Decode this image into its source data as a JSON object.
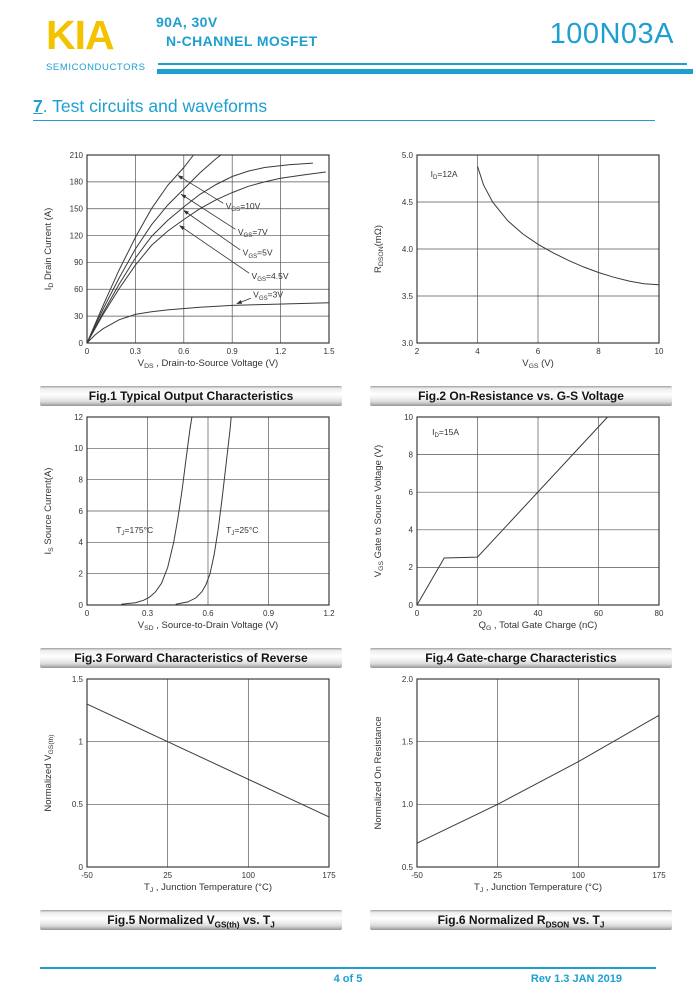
{
  "colors": {
    "brand_cyan": "#1d9fd2",
    "logo_yellow": "#f3c300",
    "chart_line": "#3a3a3a"
  },
  "header": {
    "logo_text": "KIA",
    "logo_subtext": "SEMICONDUCTORS",
    "rating": "90A, 30V",
    "device_type": "N-CHANNEL MOSFET",
    "part_number": "100N03A"
  },
  "section_title": {
    "number": "7",
    "rest": ". Test circuits and waveforms"
  },
  "footer": {
    "page": "4 of 5",
    "revision": "Rev 1.3 JAN 2019"
  },
  "chart_data": [
    {
      "id": "fig1",
      "type": "line",
      "caption": "Fig.1 Typical Output Characteristics",
      "xlabel": "V~DS~ , Drain-to-Source Voltage (V)",
      "ylabel": "I~D~ Drain Current (A)",
      "xlim": [
        0,
        1.5
      ],
      "ylim": [
        0,
        210
      ],
      "xticks": [
        0,
        0.3,
        0.6,
        0.9,
        1.2,
        1.5
      ],
      "xtick_labels": [
        "0",
        "0.3",
        "0.6",
        "0.9",
        "1.2",
        "1.5"
      ],
      "yticks": [
        0,
        30,
        60,
        90,
        120,
        150,
        180,
        210
      ],
      "ytick_labels": [
        "0",
        "30",
        "60",
        "90",
        "120",
        "150",
        "180",
        "210"
      ],
      "grid": true,
      "legend_position": "none",
      "series": [
        {
          "name": "VGS=10V",
          "points": [
            [
              0,
              0
            ],
            [
              0.1,
              42
            ],
            [
              0.2,
              82
            ],
            [
              0.3,
              118
            ],
            [
              0.4,
              150
            ],
            [
              0.5,
              176
            ],
            [
              0.6,
              196
            ],
            [
              0.66,
              210
            ]
          ]
        },
        {
          "name": "VGS=7V",
          "points": [
            [
              0,
              0
            ],
            [
              0.1,
              38
            ],
            [
              0.2,
              73
            ],
            [
              0.3,
              105
            ],
            [
              0.4,
              132
            ],
            [
              0.5,
              154
            ],
            [
              0.6,
              172
            ],
            [
              0.7,
              190
            ],
            [
              0.8,
              206
            ],
            [
              0.83,
              210
            ]
          ]
        },
        {
          "name": "VGS=5V",
          "points": [
            [
              0,
              0
            ],
            [
              0.1,
              34
            ],
            [
              0.2,
              66
            ],
            [
              0.3,
              95
            ],
            [
              0.4,
              119
            ],
            [
              0.5,
              137
            ],
            [
              0.6,
              152
            ],
            [
              0.7,
              166
            ],
            [
              0.8,
              177
            ],
            [
              0.9,
              186
            ],
            [
              1.0,
              192
            ],
            [
              1.1,
              196
            ],
            [
              1.25,
              199
            ],
            [
              1.4,
              201
            ]
          ]
        },
        {
          "name": "VGS=4.5V",
          "points": [
            [
              0,
              0
            ],
            [
              0.1,
              32
            ],
            [
              0.2,
              61
            ],
            [
              0.3,
              87
            ],
            [
              0.4,
              109
            ],
            [
              0.5,
              125
            ],
            [
              0.6,
              138
            ],
            [
              0.7,
              150
            ],
            [
              0.8,
              160
            ],
            [
              0.9,
              168
            ],
            [
              1.0,
              175
            ],
            [
              1.1,
              180
            ],
            [
              1.2,
              184
            ],
            [
              1.35,
              188
            ],
            [
              1.48,
              191
            ]
          ]
        },
        {
          "name": "VGS=3V",
          "points": [
            [
              0,
              0
            ],
            [
              0.05,
              9
            ],
            [
              0.1,
              16
            ],
            [
              0.2,
              26
            ],
            [
              0.3,
              32
            ],
            [
              0.4,
              35
            ],
            [
              0.5,
              37
            ],
            [
              0.7,
              40
            ],
            [
              0.9,
              42
            ],
            [
              1.1,
              43
            ],
            [
              1.3,
              44
            ],
            [
              1.5,
              45
            ]
          ]
        }
      ],
      "annotations": [
        {
          "text": "V~GS~=10V",
          "x": 0.86,
          "y": 153,
          "line": [
            0.845,
            156,
            0.565,
            187
          ]
        },
        {
          "text": "V~GS~=7V",
          "x": 0.935,
          "y": 124,
          "line": [
            0.92,
            127,
            0.585,
            166
          ]
        },
        {
          "text": "V~GS~=5V",
          "x": 0.965,
          "y": 101,
          "line": [
            0.95,
            104,
            0.6,
            148
          ]
        },
        {
          "text": "V~GS~=4.5V",
          "x": 1.02,
          "y": 75,
          "line": [
            1.005,
            78,
            0.575,
            131
          ]
        },
        {
          "text": "V~GS~=3V",
          "x": 1.03,
          "y": 54,
          "line": [
            1.015,
            50,
            0.93,
            44
          ]
        }
      ]
    },
    {
      "id": "fig2",
      "type": "line",
      "caption": "Fig.2 On-Resistance vs. G-S Voltage",
      "xlabel": "V~GS~ (V)",
      "ylabel": "R~DSON~(mΩ)",
      "xlim": [
        2,
        10
      ],
      "ylim": [
        3.0,
        5.0
      ],
      "xticks": [
        2,
        4,
        6,
        8,
        10
      ],
      "xtick_labels": [
        "2",
        "4",
        "6",
        "8",
        "10"
      ],
      "yticks": [
        3.0,
        3.5,
        4.0,
        4.5,
        5.0
      ],
      "ytick_labels": [
        "3.0",
        "3.5",
        "4.0",
        "4.5",
        "5.0"
      ],
      "grid": true,
      "legend_position": "none",
      "series": [
        {
          "name": "ID=12A",
          "points": [
            [
              4,
              4.88
            ],
            [
              4.2,
              4.68
            ],
            [
              4.5,
              4.5
            ],
            [
              4.8,
              4.38
            ],
            [
              5,
              4.3
            ],
            [
              5.5,
              4.16
            ],
            [
              6,
              4.05
            ],
            [
              6.5,
              3.96
            ],
            [
              7,
              3.88
            ],
            [
              7.5,
              3.81
            ],
            [
              8,
              3.75
            ],
            [
              8.5,
              3.7
            ],
            [
              9,
              3.66
            ],
            [
              9.5,
              3.63
            ],
            [
              10,
              3.62
            ]
          ]
        }
      ],
      "annotations": [
        {
          "text": "I~D~=12A",
          "x": 2.45,
          "y": 4.8
        }
      ]
    },
    {
      "id": "fig3",
      "type": "line",
      "caption": "Fig.3 Forward Characteristics of Reverse",
      "xlabel": "V~SD~ , Source-to-Drain Voltage (V)",
      "ylabel": "I~S~ Source Current(A)",
      "xlim": [
        0,
        1.2
      ],
      "ylim": [
        0,
        12
      ],
      "xticks": [
        0,
        0.3,
        0.6,
        0.9,
        1.2
      ],
      "xtick_labels": [
        "0",
        "0.3",
        "0.6",
        "0.9",
        "1.2"
      ],
      "yticks": [
        0,
        2,
        4,
        6,
        8,
        10,
        12
      ],
      "ytick_labels": [
        "0",
        "2",
        "4",
        "6",
        "8",
        "10",
        "12"
      ],
      "grid": true,
      "legend_position": "none",
      "series": [
        {
          "name": "TJ=175°C",
          "points": [
            [
              0.17,
              0.05
            ],
            [
              0.24,
              0.15
            ],
            [
              0.28,
              0.3
            ],
            [
              0.31,
              0.5
            ],
            [
              0.34,
              0.85
            ],
            [
              0.37,
              1.4
            ],
            [
              0.4,
              2.4
            ],
            [
              0.43,
              4.0
            ],
            [
              0.45,
              5.5
            ],
            [
              0.47,
              7.2
            ],
            [
              0.49,
              9.2
            ],
            [
              0.51,
              11.2
            ],
            [
              0.52,
              12
            ]
          ]
        },
        {
          "name": "TJ=25°C",
          "points": [
            [
              0.44,
              0.05
            ],
            [
              0.5,
              0.2
            ],
            [
              0.54,
              0.45
            ],
            [
              0.57,
              0.85
            ],
            [
              0.59,
              1.3
            ],
            [
              0.61,
              2.0
            ],
            [
              0.63,
              3.2
            ],
            [
              0.65,
              4.8
            ],
            [
              0.67,
              6.8
            ],
            [
              0.69,
              9.0
            ],
            [
              0.71,
              11.3
            ],
            [
              0.715,
              12
            ]
          ]
        }
      ],
      "annotations": [
        {
          "text": "T~J~=175°C",
          "x": 0.145,
          "y": 4.8
        },
        {
          "text": "T~J~=25°C",
          "x": 0.69,
          "y": 4.8
        }
      ]
    },
    {
      "id": "fig4",
      "type": "line",
      "caption": "Fig.4 Gate-charge Characteristics",
      "xlabel": "Q~G~ , Total Gate Charge (nC)",
      "ylabel": "V~GS~  Gate to Source Voltage (V)",
      "xlim": [
        0,
        80
      ],
      "ylim": [
        0,
        10
      ],
      "xticks": [
        0,
        20,
        40,
        60,
        80
      ],
      "xtick_labels": [
        "0",
        "20",
        "40",
        "60",
        "80"
      ],
      "yticks": [
        0,
        2,
        4,
        6,
        8,
        10
      ],
      "ytick_labels": [
        "0",
        "2",
        "4",
        "6",
        "8",
        "10"
      ],
      "grid": true,
      "legend_position": "none",
      "series": [
        {
          "name": "ID=15A",
          "points": [
            [
              0,
              0
            ],
            [
              9,
              2.5
            ],
            [
              20,
              2.55
            ],
            [
              63,
              10
            ]
          ]
        }
      ],
      "annotations": [
        {
          "text": "I~D~=15A",
          "x": 5,
          "y": 9.2
        }
      ]
    },
    {
      "id": "fig5",
      "type": "line",
      "caption": "Fig.5 Normalized V~GS(th)~ vs. T~J~",
      "xlabel": "T~J~ , Junction Temperature (°C)",
      "ylabel": "Normalized V~GS(th)~",
      "xlim": [
        -50,
        175
      ],
      "ylim": [
        0,
        1.5
      ],
      "xticks": [
        -50,
        25,
        100,
        175
      ],
      "xtick_labels": [
        "-50",
        "25",
        "100",
        "175"
      ],
      "yticks": [
        0,
        0.5,
        1,
        1.5
      ],
      "ytick_labels": [
        "0",
        "0.5",
        "1",
        "1.5"
      ],
      "grid": true,
      "legend_position": "none",
      "series": [
        {
          "name": "Normalized VGS(th)",
          "points": [
            [
              -50,
              1.3
            ],
            [
              25,
              1.0
            ],
            [
              175,
              0.4
            ]
          ]
        }
      ],
      "annotations": []
    },
    {
      "id": "fig6",
      "type": "line",
      "caption": "Fig.6 Normalized R~DSON~ vs. T~J~",
      "xlabel": "T~J~ , Junction Temperature (°C)",
      "ylabel": "Normalized On Resistance",
      "xlim": [
        -50,
        175
      ],
      "ylim": [
        0.5,
        2.0
      ],
      "xticks": [
        -50,
        25,
        100,
        175
      ],
      "xtick_labels": [
        "-50",
        "25",
        "100",
        "175"
      ],
      "yticks": [
        0.5,
        1.0,
        1.5,
        2.0
      ],
      "ytick_labels": [
        "0.5",
        "1.0",
        "1.5",
        "2.0"
      ],
      "grid": true,
      "legend_position": "none",
      "series": [
        {
          "name": "Normalized RDSON",
          "points": [
            [
              -50,
              0.69
            ],
            [
              25,
              1.0
            ],
            [
              100,
              1.34
            ],
            [
              175,
              1.71
            ]
          ]
        }
      ],
      "annotations": []
    }
  ]
}
